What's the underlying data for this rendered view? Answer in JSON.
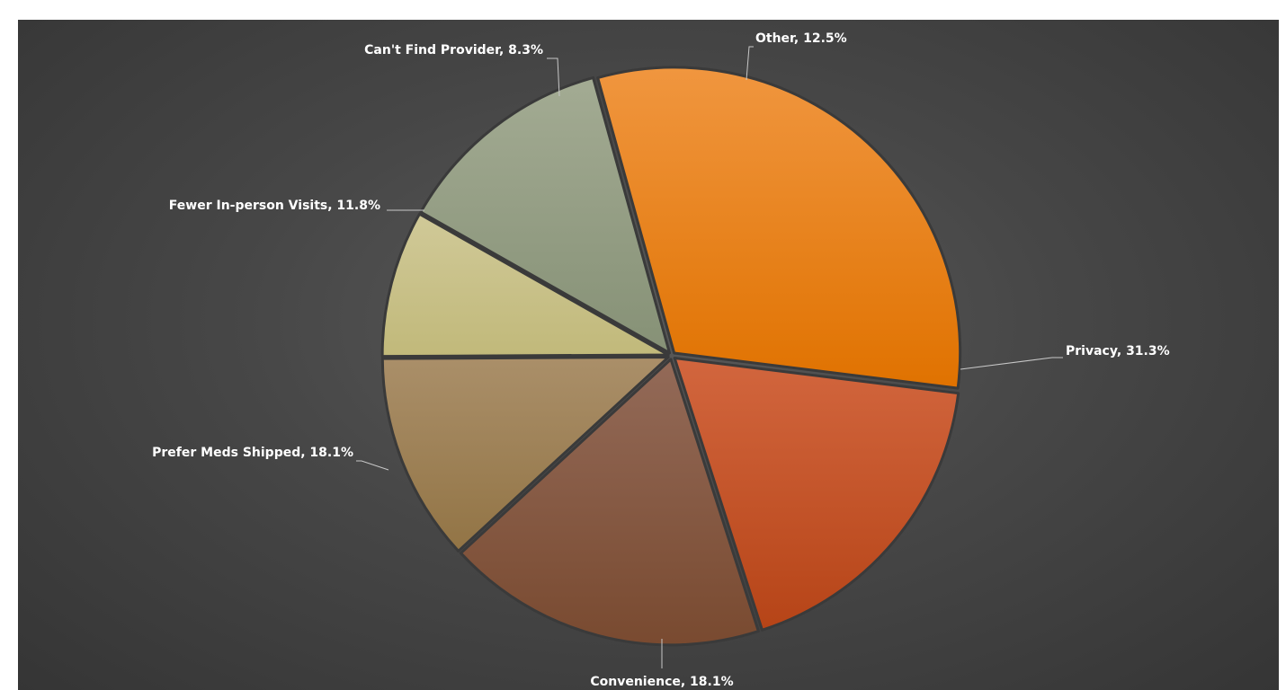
{
  "chart_data": {
    "type": "pie",
    "title": "",
    "start_angle_deg": -15.5,
    "direction": "clockwise",
    "slices": [
      {
        "label": "Privacy",
        "value": 31.3,
        "display": "Privacy, 31.3%",
        "color_top": "#f0963f",
        "color_bottom": "#e07200"
      },
      {
        "label": "Convenience",
        "value": 18.1,
        "display": "Convenience, 18.1%",
        "color_top": "#d2663e",
        "color_bottom": "#b64417"
      },
      {
        "label": "Prefer Meds Shipped",
        "value": 18.1,
        "display": "Prefer Meds Shipped, 18.1%",
        "color_top": "#936a58",
        "color_bottom": "#794a30"
      },
      {
        "label": "Fewer In-person Visits",
        "value": 11.8,
        "display": "Fewer In-person Visits, 11.8%",
        "color_top": "#aa8f69",
        "color_bottom": "#927445"
      },
      {
        "label": "Can't Find Provider",
        "value": 8.3,
        "display": "Can't Find Provider, 8.3%",
        "color_top": "#d0c998",
        "color_bottom": "#c1b97a"
      },
      {
        "label": "Other",
        "value": 12.5,
        "display": "Other, 12.5%",
        "color_top": "#a3ab93",
        "color_bottom": "#869176"
      }
    ],
    "legend": "none",
    "data_labels": "outside-with-leader-lines"
  }
}
